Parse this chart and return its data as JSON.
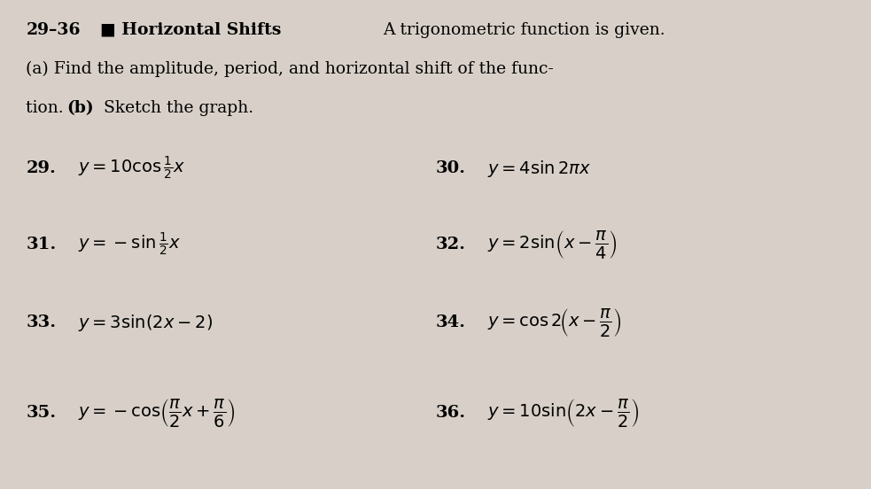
{
  "bg_color": "#d8d0c8",
  "text_color": "#000000",
  "title_bold": "29–36",
  "title_section": " ■ Horizontal Shifts",
  "title_desc": "  A trigonometric function is given.",
  "line2": "(a) Find the amplitude, period, and horizontal shift of the func-",
  "line3": "tion. (b) Sketch the graph.",
  "items": [
    {
      "num": "29.",
      "formula": "$y = 10 \\cos \\frac{1}{2}x$",
      "col": 0,
      "row": 0
    },
    {
      "num": "30.",
      "formula": "$y = 4 \\sin 2\\pi x$",
      "col": 1,
      "row": 0
    },
    {
      "num": "31.",
      "formula": "$y = -\\sin \\frac{1}{2}x$",
      "col": 0,
      "row": 1
    },
    {
      "num": "32.",
      "formula": "$y = 2 \\sin\\!\\left( x - \\dfrac{\\pi}{4} \\right)$",
      "col": 1,
      "row": 1
    },
    {
      "num": "33.",
      "formula": "$y = 3 \\sin(2x - 2)$",
      "col": 0,
      "row": 2
    },
    {
      "num": "34.",
      "formula": "$y = \\cos 2\\!\\left( x - \\dfrac{\\pi}{2} \\right)$",
      "col": 1,
      "row": 2
    },
    {
      "num": "35.",
      "formula": "$y = -\\cos\\!\\left( \\dfrac{\\pi}{2}x + \\dfrac{\\pi}{6} \\right)$",
      "col": 0,
      "row": 3
    },
    {
      "num": "36.",
      "formula": "$y = 10 \\sin\\!\\left( 2x - \\dfrac{\\pi}{2} \\right)$",
      "col": 1,
      "row": 3
    }
  ],
  "figsize": [
    9.83,
    5.52
  ],
  "dpi": 100
}
